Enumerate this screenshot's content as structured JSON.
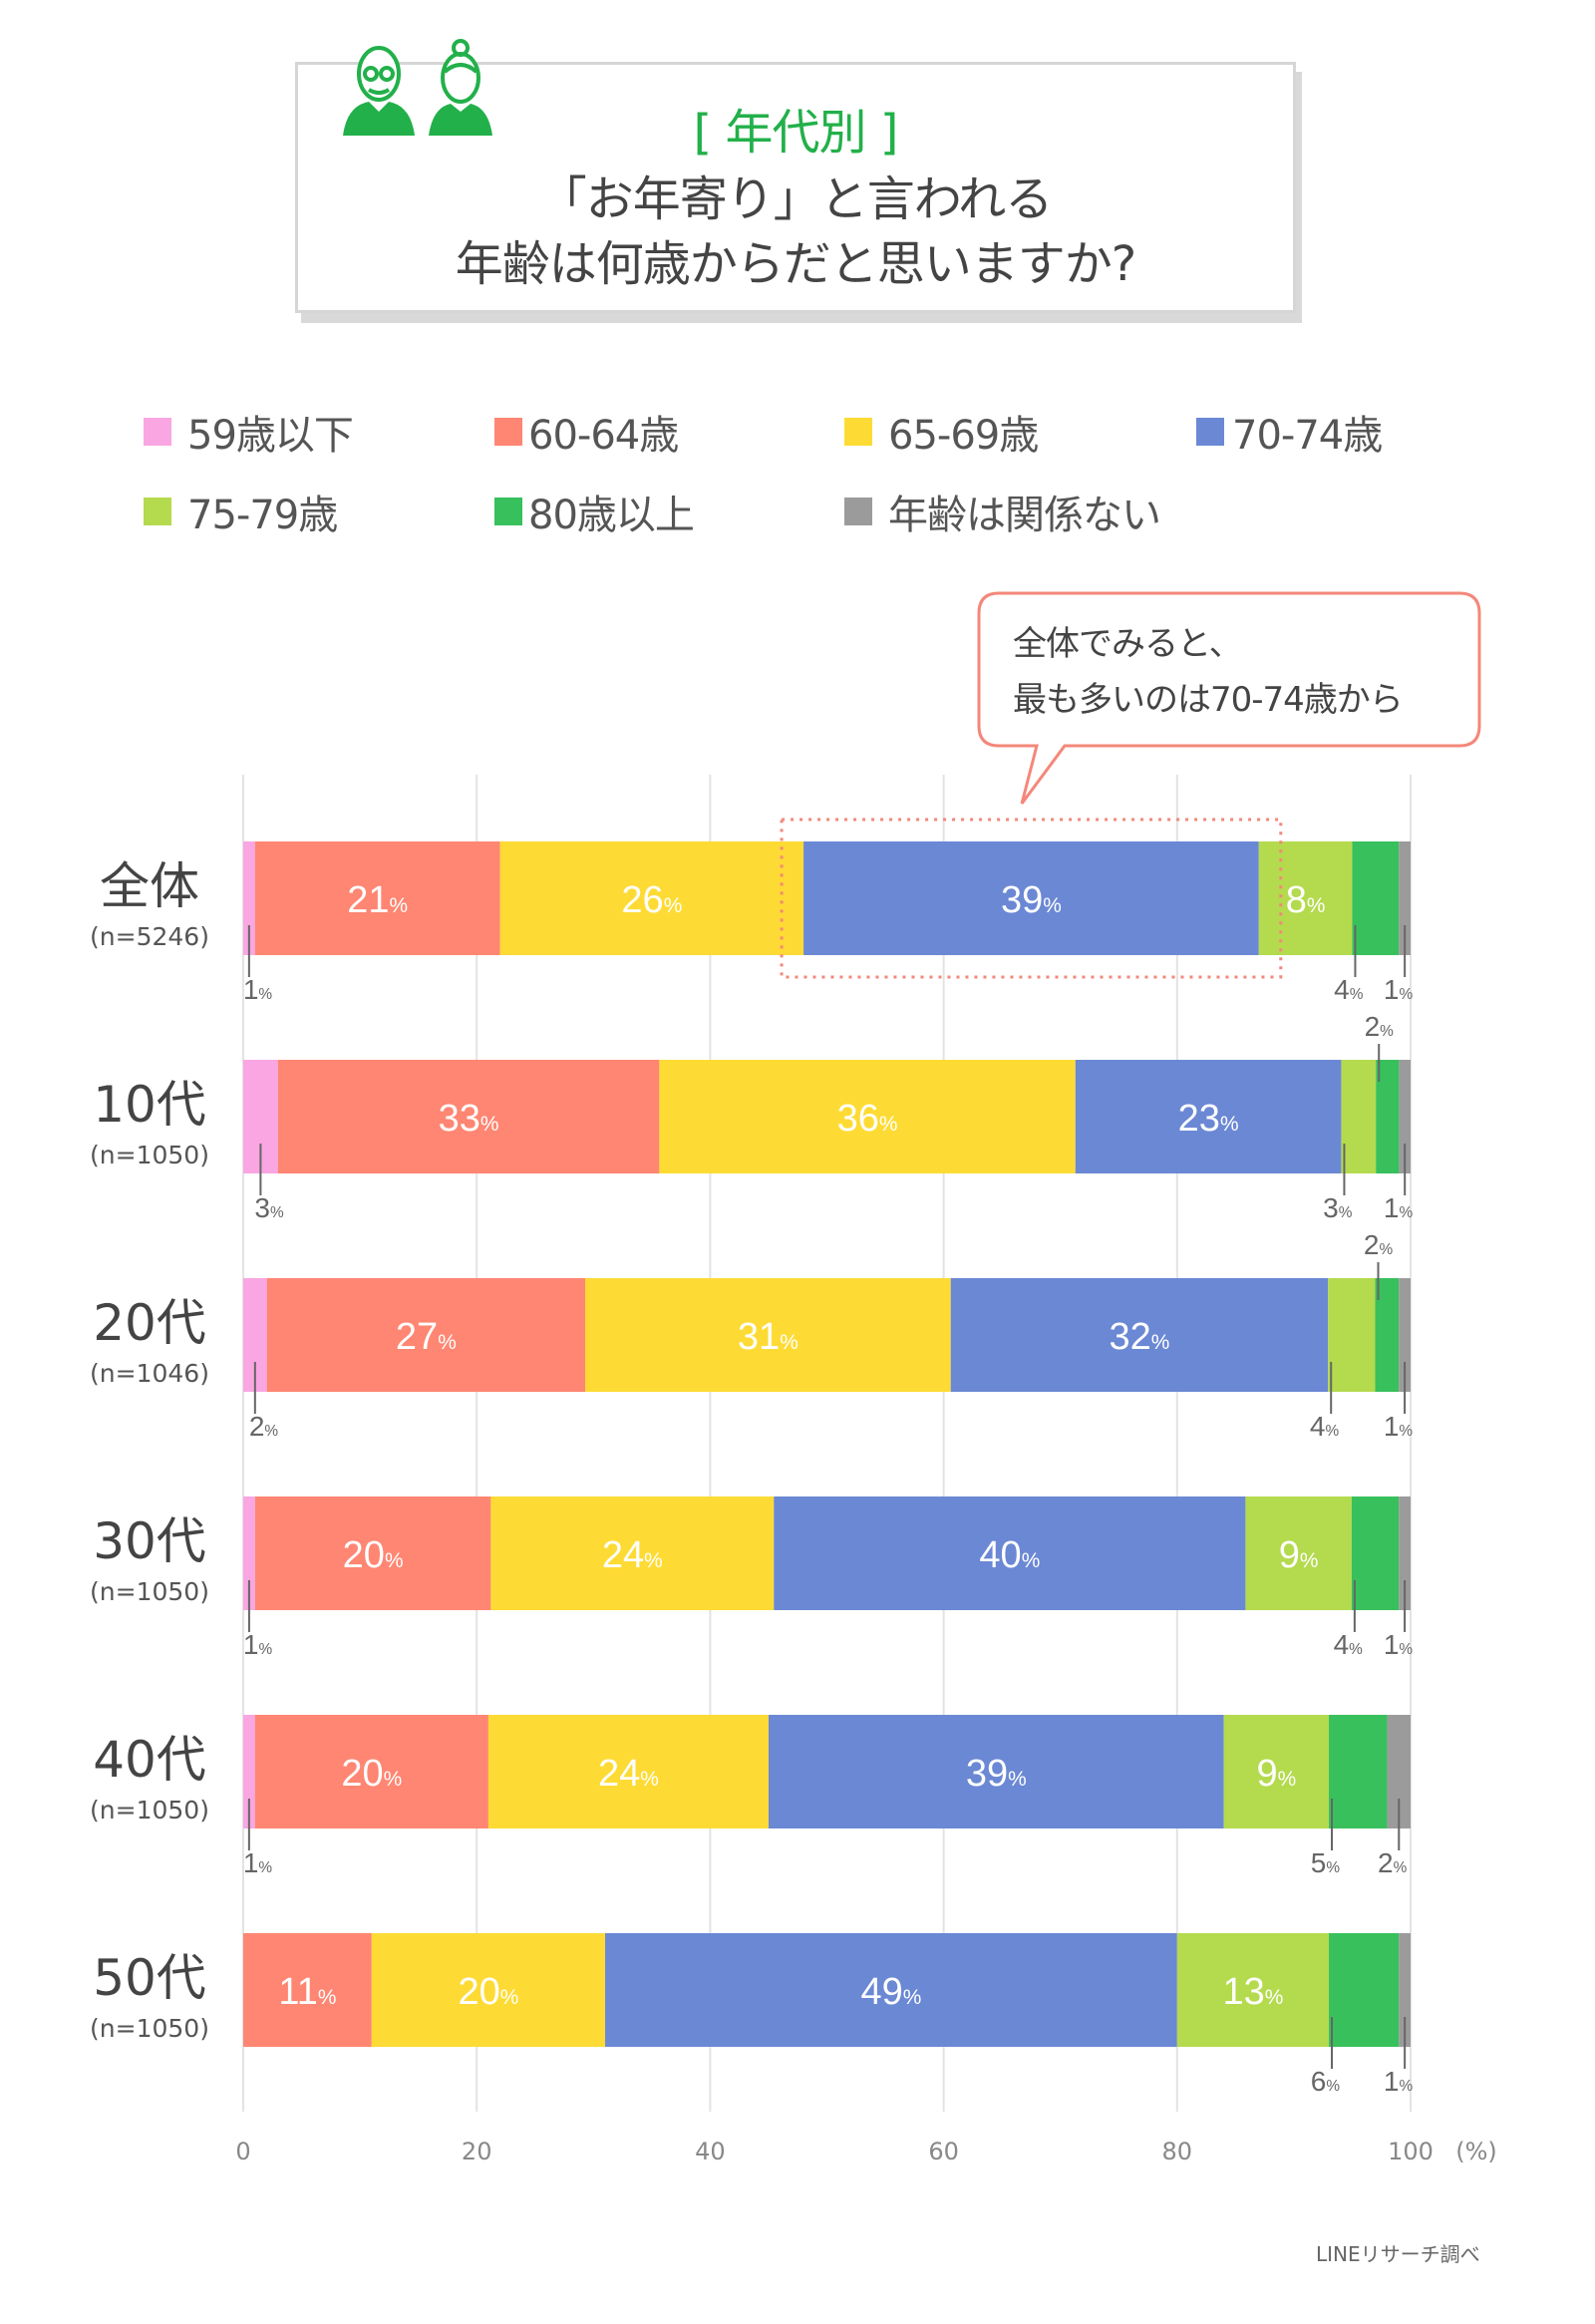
{
  "title": {
    "line1": "[ 年代別 ]",
    "line2": "「お年寄り」と言われる",
    "line3": "年齢は何歳からだと思いますか?",
    "icon": "elderly-couple-icon",
    "accent_color": "#22b04a"
  },
  "callout": {
    "line1": "全体でみると、",
    "line2": "最も多いのは70-74歳から",
    "border_color": "#f4877a"
  },
  "source": "LINEリサーチ調べ",
  "chart_data": {
    "type": "bar",
    "orientation": "horizontal",
    "stacked": true,
    "xlim": [
      0,
      100
    ],
    "x_ticks": [
      "0",
      "20",
      "40",
      "60",
      "80",
      "100"
    ],
    "x_unit": "(%)",
    "grid": true,
    "legend_position": "top",
    "series": [
      {
        "name": "59歳以下",
        "color": "#f9a6e2"
      },
      {
        "name": "60-64歳",
        "color": "#fe8672"
      },
      {
        "name": "65-69歳",
        "color": "#fedb34"
      },
      {
        "name": "70-74歳",
        "color": "#6b88d4"
      },
      {
        "name": "75-79歳",
        "color": "#b4da4e"
      },
      {
        "name": "80歳以上",
        "color": "#38c05c"
      },
      {
        "name": "年齢は関係ない",
        "color": "#9b9b9b"
      }
    ],
    "categories": [
      {
        "label": "全体",
        "n": "(n=5246)",
        "values": [
          1,
          21,
          26,
          39,
          8,
          4,
          1
        ],
        "label_positions": [
          "below",
          "inside",
          "inside",
          "inside",
          "inside",
          "below",
          "below"
        ]
      },
      {
        "label": "10代",
        "n": "(n=1050)",
        "values": [
          3,
          33,
          36,
          23,
          3,
          2,
          1
        ],
        "label_positions": [
          "below",
          "inside",
          "inside",
          "inside",
          "below",
          "above",
          "below"
        ]
      },
      {
        "label": "20代",
        "n": "(n=1046)",
        "values": [
          2,
          27,
          31,
          32,
          4,
          2,
          1
        ],
        "label_positions": [
          "below",
          "inside",
          "inside",
          "inside",
          "below",
          "above",
          "below"
        ]
      },
      {
        "label": "30代",
        "n": "(n=1050)",
        "values": [
          1,
          20,
          24,
          40,
          9,
          4,
          1
        ],
        "label_positions": [
          "below",
          "inside",
          "inside",
          "inside",
          "inside",
          "below",
          "below"
        ]
      },
      {
        "label": "40代",
        "n": "(n=1050)",
        "values": [
          1,
          20,
          24,
          39,
          9,
          5,
          2
        ],
        "label_positions": [
          "below",
          "inside",
          "inside",
          "inside",
          "inside",
          "below",
          "below"
        ]
      },
      {
        "label": "50代",
        "n": "(n=1050)",
        "values": [
          0,
          11,
          20,
          49,
          13,
          6,
          1
        ],
        "label_positions": [
          "none",
          "inside",
          "inside",
          "inside",
          "inside",
          "below",
          "below"
        ]
      }
    ],
    "highlight": {
      "category": "全体",
      "series": "70-74歳",
      "style": "dotted-box",
      "color": "#f4877a"
    }
  }
}
